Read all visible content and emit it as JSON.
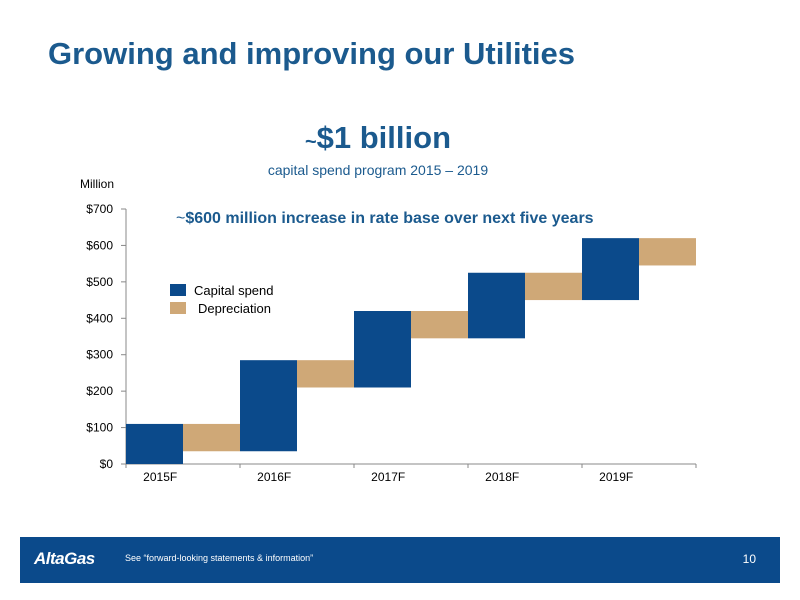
{
  "slide": {
    "title": "Growing and improving our Utilities",
    "headline_prefix": "~",
    "headline": "$1 billion",
    "subheadline": "capital spend program 2015 – 2019",
    "unit_label": "Million",
    "annotation_prefix": "~",
    "annotation": "$600 million increase in rate base over next five years",
    "page_number": "10"
  },
  "footer": {
    "logo": "AltaGas",
    "disclaimer": "See “forward-looking statements & information”"
  },
  "chart_data": {
    "type": "bar",
    "subtype": "waterfall",
    "categories": [
      "2015F",
      "2016F",
      "2017F",
      "2018F",
      "2019F"
    ],
    "series": [
      {
        "name": "Capital spend",
        "color": "#0b4a8b",
        "ranges": [
          [
            0,
            110
          ],
          [
            35,
            285
          ],
          [
            210,
            420
          ],
          [
            345,
            525
          ],
          [
            450,
            620
          ]
        ]
      },
      {
        "name": "Depreciation",
        "color": "#cfa877",
        "ranges": [
          [
            35,
            110
          ],
          [
            210,
            285
          ],
          [
            345,
            420
          ],
          [
            450,
            525
          ],
          [
            545,
            620
          ]
        ]
      }
    ],
    "yticks": [
      "$0",
      "$100",
      "$200",
      "$300",
      "$400",
      "$500",
      "$600",
      "$700"
    ],
    "ylim": [
      0,
      700
    ],
    "legend": "upper-left"
  }
}
